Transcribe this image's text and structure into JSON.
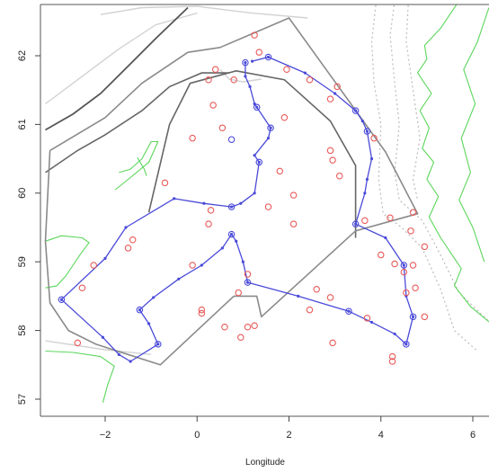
{
  "chart_data": {
    "type": "map",
    "title": "",
    "xlabel": "Longitude",
    "ylabel": "",
    "xlim": [
      -3.5,
      6.4
    ],
    "ylim": [
      56.8,
      62.75
    ],
    "x_ticks": [
      {
        "value": -2,
        "label": "−2"
      },
      {
        "value": 0,
        "label": "0"
      },
      {
        "value": 2,
        "label": "2"
      },
      {
        "value": 4,
        "label": "4"
      },
      {
        "value": 6,
        "label": "6"
      }
    ],
    "y_ticks": [
      {
        "value": 57,
        "label": "57"
      },
      {
        "value": 58,
        "label": "58"
      },
      {
        "value": 59,
        "label": "59"
      },
      {
        "value": 60,
        "label": "60"
      },
      {
        "value": 61,
        "label": "61"
      },
      {
        "value": 62,
        "label": "62"
      }
    ],
    "colors": {
      "survey_track": "#4a4ad9",
      "sample_stations": "#e85a5a",
      "coastline": "#5bd65b",
      "boundary": "#8a8a8a",
      "depth_contour": "#bbbbbb"
    },
    "survey_track": [
      [
        1.05,
        61.9
      ],
      [
        1.05,
        61.7
      ],
      [
        1.15,
        61.55
      ],
      [
        1.25,
        61.3
      ],
      [
        1.3,
        61.25
      ],
      [
        1.6,
        60.95
      ],
      [
        1.55,
        60.8
      ],
      [
        1.25,
        60.55
      ],
      [
        1.35,
        60.45
      ],
      [
        1.25,
        60.0
      ],
      [
        0.95,
        59.85
      ],
      [
        0.75,
        59.8
      ],
      [
        0.15,
        59.85
      ],
      [
        -0.5,
        59.92
      ],
      [
        -1.55,
        59.5
      ],
      [
        -2.0,
        59.05
      ],
      [
        -2.95,
        58.45
      ],
      [
        -2.05,
        57.9
      ],
      [
        -1.7,
        57.65
      ],
      [
        -1.45,
        57.55
      ],
      [
        -0.85,
        57.8
      ],
      [
        -1.05,
        58.1
      ],
      [
        -1.25,
        58.3
      ],
      [
        -0.95,
        58.48
      ],
      [
        -0.4,
        58.75
      ],
      [
        0.1,
        58.95
      ],
      [
        0.55,
        59.2
      ],
      [
        0.75,
        59.4
      ],
      [
        0.85,
        59.3
      ],
      [
        1.0,
        59.0
      ],
      [
        1.1,
        58.7
      ],
      [
        2.2,
        58.5
      ],
      [
        3.3,
        58.28
      ],
      [
        3.8,
        58.12
      ],
      [
        4.3,
        57.95
      ],
      [
        4.55,
        57.8
      ],
      [
        4.7,
        58.2
      ],
      [
        4.55,
        58.5
      ],
      [
        4.5,
        58.95
      ],
      [
        4.1,
        59.35
      ],
      [
        3.45,
        59.55
      ],
      [
        3.65,
        60.0
      ],
      [
        3.7,
        60.2
      ],
      [
        3.8,
        60.5
      ],
      [
        3.7,
        60.9
      ],
      [
        3.6,
        61.05
      ],
      [
        3.45,
        61.2
      ],
      [
        3.0,
        61.45
      ],
      [
        2.35,
        61.75
      ],
      [
        1.55,
        61.98
      ],
      [
        1.2,
        61.92
      ]
    ],
    "survey_track_waypoints": [
      [
        1.05,
        61.9
      ],
      [
        1.3,
        61.25
      ],
      [
        1.6,
        60.95
      ],
      [
        0.75,
        60.78
      ],
      [
        1.35,
        60.45
      ],
      [
        0.75,
        59.8
      ],
      [
        -2.95,
        58.45
      ],
      [
        -0.85,
        57.8
      ],
      [
        -1.25,
        58.3
      ],
      [
        0.75,
        59.4
      ],
      [
        1.1,
        58.7
      ],
      [
        3.3,
        58.28
      ],
      [
        4.55,
        57.8
      ],
      [
        4.7,
        58.2
      ],
      [
        4.5,
        58.95
      ],
      [
        3.45,
        59.55
      ],
      [
        3.7,
        60.9
      ],
      [
        3.45,
        61.2
      ],
      [
        1.55,
        61.98
      ]
    ],
    "sample_stations": [
      [
        1.25,
        62.3
      ],
      [
        1.35,
        62.05
      ],
      [
        0.4,
        61.8
      ],
      [
        0.25,
        61.65
      ],
      [
        0.8,
        61.65
      ],
      [
        1.95,
        61.8
      ],
      [
        2.45,
        61.65
      ],
      [
        3.05,
        61.55
      ],
      [
        2.9,
        61.37
      ],
      [
        0.35,
        61.28
      ],
      [
        1.9,
        61.1
      ],
      [
        0.55,
        60.95
      ],
      [
        -0.1,
        60.8
      ],
      [
        3.85,
        60.8
      ],
      [
        2.9,
        60.62
      ],
      [
        2.95,
        60.48
      ],
      [
        1.8,
        60.32
      ],
      [
        3.1,
        60.25
      ],
      [
        -0.7,
        60.15
      ],
      [
        2.1,
        59.97
      ],
      [
        1.55,
        59.8
      ],
      [
        0.3,
        59.75
      ],
      [
        4.2,
        59.64
      ],
      [
        4.7,
        59.72
      ],
      [
        2.1,
        59.55
      ],
      [
        0.25,
        59.55
      ],
      [
        3.65,
        59.6
      ],
      [
        4.65,
        59.45
      ],
      [
        4.95,
        59.22
      ],
      [
        -1.4,
        59.32
      ],
      [
        -1.5,
        59.2
      ],
      [
        4.0,
        59.1
      ],
      [
        4.3,
        58.97
      ],
      [
        4.7,
        58.95
      ],
      [
        -2.25,
        58.95
      ],
      [
        -0.1,
        58.95
      ],
      [
        1.1,
        58.82
      ],
      [
        4.5,
        58.85
      ],
      [
        2.6,
        58.6
      ],
      [
        -2.5,
        58.62
      ],
      [
        4.75,
        58.62
      ],
      [
        4.55,
        58.55
      ],
      [
        0.9,
        58.55
      ],
      [
        2.9,
        58.48
      ],
      [
        0.1,
        58.3
      ],
      [
        0.1,
        58.25
      ],
      [
        2.45,
        58.3
      ],
      [
        3.7,
        58.18
      ],
      [
        4.95,
        58.2
      ],
      [
        0.6,
        58.05
      ],
      [
        1.1,
        58.05
      ],
      [
        1.25,
        58.07
      ],
      [
        0.95,
        57.9
      ],
      [
        2.95,
        57.82
      ],
      [
        -2.6,
        57.82
      ],
      [
        4.25,
        57.62
      ],
      [
        4.25,
        57.55
      ]
    ],
    "ices_boundary": [
      [
        -3.2,
        60.62
      ],
      [
        -2.0,
        61.1
      ],
      [
        -1.2,
        61.6
      ],
      [
        -0.2,
        62.05
      ],
      [
        0.5,
        62.12
      ],
      [
        2.0,
        62.55
      ],
      [
        4.1,
        60.6
      ],
      [
        4.8,
        59.7
      ],
      [
        3.45,
        59.45
      ],
      [
        1.4,
        58.2
      ],
      [
        1.3,
        58.5
      ],
      [
        0.8,
        58.5
      ],
      [
        -0.8,
        57.5
      ],
      [
        -2.2,
        57.8
      ],
      [
        -2.8,
        58.0
      ],
      [
        -3.2,
        58.4
      ],
      [
        -3.3,
        59.3
      ],
      [
        -3.2,
        60.62
      ]
    ],
    "inner_boundary": [
      [
        -1.05,
        59.72
      ],
      [
        -0.6,
        61.0
      ],
      [
        -0.15,
        61.6
      ],
      [
        0.85,
        61.78
      ],
      [
        1.9,
        61.65
      ],
      [
        2.9,
        61.05
      ],
      [
        3.45,
        60.4
      ],
      [
        3.45,
        59.35
      ]
    ],
    "shelf_edge": [
      [
        -3.3,
        60.92
      ],
      [
        -2.7,
        61.15
      ],
      [
        -2.1,
        61.45
      ],
      [
        -1.5,
        61.85
      ],
      [
        -0.9,
        62.25
      ],
      [
        -0.2,
        62.7
      ]
    ],
    "shelf_edge_2": [
      [
        -3.3,
        60.3
      ],
      [
        -2.6,
        60.62
      ],
      [
        -2.0,
        60.85
      ],
      [
        -1.2,
        61.2
      ],
      [
        -0.6,
        61.55
      ],
      [
        0.1,
        61.75
      ],
      [
        0.7,
        61.75
      ]
    ],
    "depth_contours": [
      [
        [
          -2.1,
          62.6
        ],
        [
          -1.2,
          62.7
        ],
        [
          0.0,
          62.72
        ],
        [
          1.2,
          62.62
        ],
        [
          2.4,
          62.55
        ]
      ],
      [
        [
          -3.3,
          61.3
        ],
        [
          -2.5,
          61.7
        ],
        [
          -1.7,
          62.1
        ],
        [
          -0.9,
          62.45
        ],
        [
          0.0,
          62.62
        ]
      ],
      [
        [
          -3.3,
          57.85
        ],
        [
          -2.0,
          57.72
        ],
        [
          -1.0,
          57.65
        ]
      ],
      [
        [
          0.5,
          61.8
        ],
        [
          0.7,
          61.66
        ],
        [
          1.0,
          61.62
        ],
        [
          1.4,
          61.66
        ]
      ]
    ],
    "trench_contours": [
      [
        [
          3.9,
          62.8
        ],
        [
          3.8,
          62.2
        ],
        [
          3.85,
          61.6
        ],
        [
          4.0,
          61.0
        ],
        [
          3.95,
          60.2
        ],
        [
          4.05,
          59.7
        ],
        [
          4.45,
          59.5
        ],
        [
          4.9,
          59.2
        ],
        [
          5.3,
          58.6
        ],
        [
          5.6,
          58.0
        ],
        [
          6.1,
          57.7
        ]
      ],
      [
        [
          4.3,
          62.8
        ],
        [
          4.2,
          62.3
        ],
        [
          4.3,
          61.6
        ],
        [
          4.4,
          61.0
        ],
        [
          4.3,
          60.3
        ],
        [
          4.4,
          59.9
        ],
        [
          4.9,
          59.6
        ],
        [
          5.3,
          59.1
        ],
        [
          5.7,
          58.55
        ],
        [
          6.4,
          58.1
        ]
      ],
      [
        [
          4.6,
          62.8
        ],
        [
          4.55,
          62.2
        ],
        [
          4.7,
          61.5
        ],
        [
          4.85,
          60.8
        ],
        [
          4.7,
          60.2
        ],
        [
          4.8,
          59.9
        ]
      ]
    ],
    "coastlines": [
      [
        [
          5.7,
          62.8
        ],
        [
          5.3,
          62.4
        ],
        [
          4.95,
          62.15
        ],
        [
          5.0,
          61.95
        ],
        [
          4.8,
          61.75
        ],
        [
          5.1,
          61.45
        ],
        [
          4.85,
          61.2
        ],
        [
          5.05,
          60.95
        ],
        [
          4.9,
          60.65
        ],
        [
          5.15,
          60.45
        ],
        [
          5.0,
          60.2
        ],
        [
          5.25,
          59.95
        ],
        [
          5.05,
          59.65
        ],
        [
          5.3,
          59.35
        ],
        [
          5.55,
          59.1
        ],
        [
          5.75,
          58.9
        ],
        [
          5.6,
          58.65
        ],
        [
          5.95,
          58.35
        ],
        [
          6.4,
          58.1
        ]
      ],
      [
        [
          -3.3,
          59.3
        ],
        [
          -2.95,
          59.38
        ],
        [
          -2.5,
          59.35
        ],
        [
          -2.35,
          59.28
        ],
        [
          -2.55,
          59.1
        ],
        [
          -2.7,
          58.95
        ],
        [
          -2.85,
          58.8
        ],
        [
          -3.05,
          58.65
        ],
        [
          -3.3,
          58.62
        ]
      ],
      [
        [
          -1.78,
          60.05
        ],
        [
          -1.5,
          60.2
        ],
        [
          -1.05,
          60.45
        ],
        [
          -0.85,
          60.75
        ],
        [
          -1.0,
          60.75
        ],
        [
          -1.2,
          60.5
        ],
        [
          -1.45,
          60.35
        ],
        [
          -1.7,
          60.3
        ]
      ],
      [
        [
          -1.3,
          60.52
        ],
        [
          -1.15,
          60.35
        ],
        [
          -1.1,
          60.25
        ]
      ],
      [
        [
          -3.3,
          57.7
        ],
        [
          -2.7,
          57.68
        ],
        [
          -2.1,
          57.62
        ],
        [
          -1.8,
          57.48
        ],
        [
          -1.95,
          57.2
        ],
        [
          -2.05,
          56.95
        ]
      ],
      [
        [
          6.35,
          62.7
        ],
        [
          6.1,
          62.2
        ],
        [
          5.8,
          61.8
        ],
        [
          6.05,
          61.3
        ],
        [
          5.75,
          60.8
        ],
        [
          5.95,
          60.3
        ],
        [
          5.7,
          59.9
        ],
        [
          6.0,
          59.5
        ],
        [
          6.25,
          59.0
        ]
      ]
    ]
  }
}
